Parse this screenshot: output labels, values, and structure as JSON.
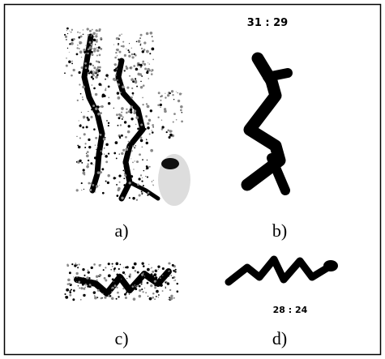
{
  "panels": [
    {
      "label": "a)"
    },
    {
      "label": "b)",
      "note": "31 : 29"
    },
    {
      "label": "c)"
    },
    {
      "label": "d)",
      "note": "28 : 24"
    }
  ]
}
